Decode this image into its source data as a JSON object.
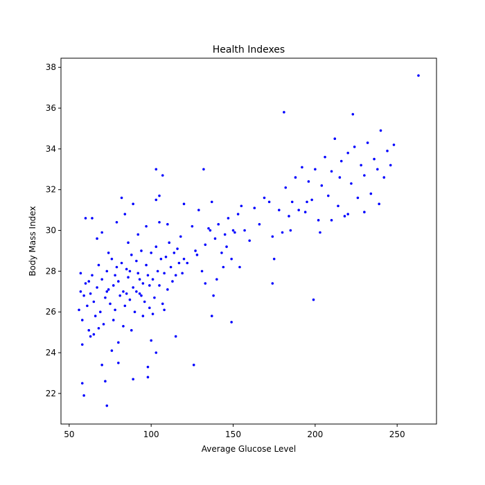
{
  "chart_data": {
    "type": "scatter",
    "title": "Health Indexes",
    "x_label": "Average Glucose Level",
    "y_label": "Body Mass Index",
    "color": "#0000ff",
    "x": [
      56,
      57,
      58,
      59,
      60,
      61,
      62,
      63,
      64,
      65,
      66,
      67,
      68,
      69,
      70,
      71,
      72,
      73,
      74,
      75,
      76,
      77,
      78,
      79,
      80,
      81,
      82,
      83,
      84,
      85,
      86,
      87,
      88,
      89,
      90,
      91,
      92,
      93,
      94,
      95,
      96,
      97,
      98,
      99,
      100,
      101,
      102,
      103,
      104,
      105,
      106,
      107,
      108,
      109,
      110,
      111,
      112,
      113,
      114,
      115,
      116,
      117,
      118,
      119,
      120,
      58,
      62,
      65,
      68,
      70,
      74,
      77,
      80,
      83,
      86,
      88,
      92,
      95,
      97,
      101,
      105,
      108,
      110,
      60,
      64,
      67,
      82,
      89,
      84,
      79,
      76,
      80,
      70,
      63,
      103,
      105,
      120,
      57,
      91,
      94,
      99,
      73,
      85,
      78,
      87,
      93,
      122,
      125,
      127,
      129,
      131,
      133,
      135,
      137,
      139,
      141,
      143,
      145,
      147,
      149,
      151,
      153,
      155,
      157,
      160,
      163,
      166,
      169,
      172,
      174,
      133,
      140,
      144,
      154,
      128,
      136,
      146,
      150,
      178,
      180,
      182,
      184,
      186,
      188,
      190,
      192,
      194,
      196,
      198,
      200,
      202,
      204,
      206,
      208,
      210,
      212,
      214,
      216,
      218,
      220,
      222,
      224,
      226,
      228,
      230,
      232,
      234,
      236,
      238,
      240,
      242,
      244,
      246,
      248,
      203,
      210,
      220,
      230,
      239,
      185,
      195,
      215,
      263,
      181,
      223,
      59,
      58,
      73,
      72,
      89,
      98,
      98,
      126,
      115,
      103,
      100,
      132,
      103,
      107,
      199,
      149,
      137,
      174,
      175,
      138
    ],
    "values": [
      26.1,
      27.0,
      25.6,
      26.8,
      27.4,
      26.3,
      25.1,
      26.9,
      27.8,
      26.5,
      25.8,
      27.2,
      28.3,
      26.0,
      27.6,
      25.4,
      26.7,
      28.0,
      27.1,
      26.4,
      28.6,
      27.3,
      26.1,
      28.2,
      27.5,
      26.8,
      28.4,
      27.0,
      26.3,
      28.1,
      27.7,
      26.6,
      28.8,
      27.2,
      26.0,
      28.5,
      27.9,
      26.9,
      29.0,
      27.4,
      26.5,
      28.3,
      27.8,
      26.2,
      28.9,
      27.6,
      26.7,
      29.2,
      28.0,
      27.3,
      28.6,
      26.4,
      27.9,
      28.7,
      27.1,
      29.4,
      28.2,
      27.5,
      28.9,
      27.8,
      29.1,
      28.4,
      29.7,
      27.9,
      28.6,
      24.4,
      27.5,
      24.9,
      25.2,
      29.9,
      28.9,
      25.6,
      24.5,
      25.3,
      29.4,
      25.1,
      29.8,
      25.8,
      30.2,
      25.9,
      30.4,
      26.1,
      30.3,
      30.6,
      30.6,
      29.6,
      31.6,
      31.3,
      30.8,
      30.4,
      24.1,
      23.5,
      23.4,
      24.8,
      31.5,
      31.7,
      31.3,
      27.9,
      27.0,
      26.8,
      27.3,
      27.0,
      26.9,
      27.8,
      28.0,
      27.6,
      28.4,
      30.2,
      29.0,
      31.0,
      28.0,
      29.3,
      30.1,
      31.4,
      29.6,
      30.3,
      28.9,
      29.8,
      30.6,
      28.6,
      29.9,
      30.8,
      31.2,
      30.0,
      29.5,
      31.1,
      30.3,
      31.6,
      31.4,
      29.7,
      27.4,
      27.6,
      28.2,
      28.2,
      28.8,
      30.0,
      29.2,
      30.0,
      31.0,
      29.9,
      32.1,
      30.7,
      31.4,
      32.6,
      31.0,
      33.1,
      30.9,
      32.4,
      31.5,
      33.0,
      30.5,
      32.2,
      33.6,
      31.7,
      32.9,
      34.5,
      31.2,
      33.4,
      30.7,
      33.8,
      32.3,
      34.1,
      31.6,
      33.2,
      32.7,
      34.3,
      31.8,
      33.5,
      33.0,
      34.9,
      32.6,
      33.9,
      33.2,
      34.2,
      29.9,
      30.5,
      30.8,
      30.9,
      31.3,
      30.0,
      31.4,
      32.6,
      37.6,
      35.8,
      35.7,
      21.9,
      22.5,
      21.4,
      22.6,
      22.7,
      22.8,
      23.3,
      23.4,
      24.8,
      24.0,
      24.6,
      33.0,
      33.0,
      32.7,
      26.6,
      25.5,
      25.8,
      27.4,
      28.6,
      26.8
    ],
    "xlim": [
      45,
      274
    ],
    "ylim": [
      20.5,
      38.45
    ],
    "xticks": [
      50,
      100,
      150,
      200,
      250
    ],
    "yticks": [
      22,
      24,
      26,
      28,
      30,
      32,
      34,
      36,
      38
    ]
  }
}
